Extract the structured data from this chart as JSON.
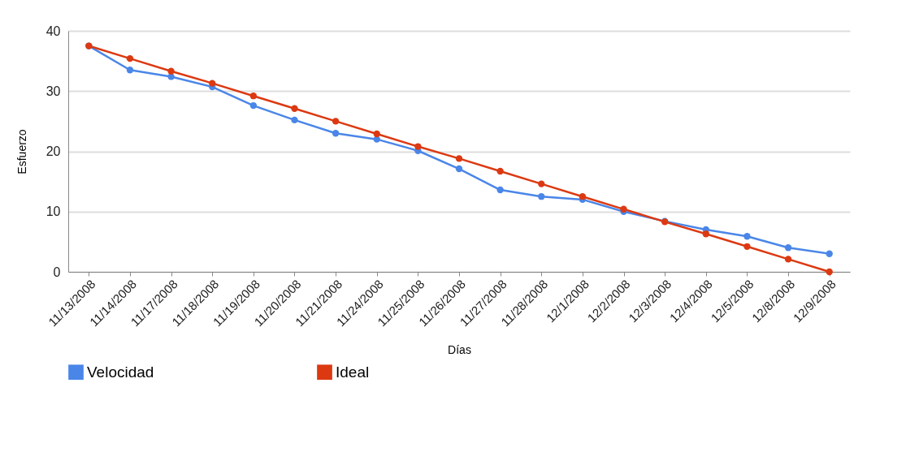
{
  "chart_data": {
    "type": "line",
    "xlabel": "Días",
    "ylabel": "Esfuerzo",
    "categories": [
      "11/13/2008",
      "11/14/2008",
      "11/17/2008",
      "11/18/2008",
      "11/19/2008",
      "11/20/2008",
      "11/21/2008",
      "11/24/2008",
      "11/25/2008",
      "11/26/2008",
      "11/27/2008",
      "11/28/2008",
      "12/1/2008",
      "12/2/2008",
      "12/3/2008",
      "12/4/2008",
      "12/5/2008",
      "12/8/2008",
      "12/9/2008"
    ],
    "series": [
      {
        "name": "Velocidad",
        "color": "#4a86e8",
        "values": [
          37.5,
          33.5,
          32.4,
          30.7,
          27.6,
          25.2,
          23.0,
          22.0,
          20.1,
          17.1,
          13.6,
          12.5,
          12.0,
          10.0,
          8.4,
          7.0,
          5.9,
          4.0,
          3.0
        ]
      },
      {
        "name": "Ideal",
        "color": "#dc3912",
        "values": [
          37.5,
          35.4,
          33.3,
          31.3,
          29.2,
          27.1,
          25.0,
          22.9,
          20.8,
          18.8,
          16.7,
          14.6,
          12.5,
          10.4,
          8.3,
          6.3,
          4.2,
          2.1,
          0
        ]
      }
    ],
    "ylim": [
      0,
      40
    ],
    "yticks": [
      0,
      10,
      20,
      30,
      40
    ],
    "grid": "y",
    "legend": "bottom",
    "marker": "circle",
    "line_style": "solid"
  }
}
